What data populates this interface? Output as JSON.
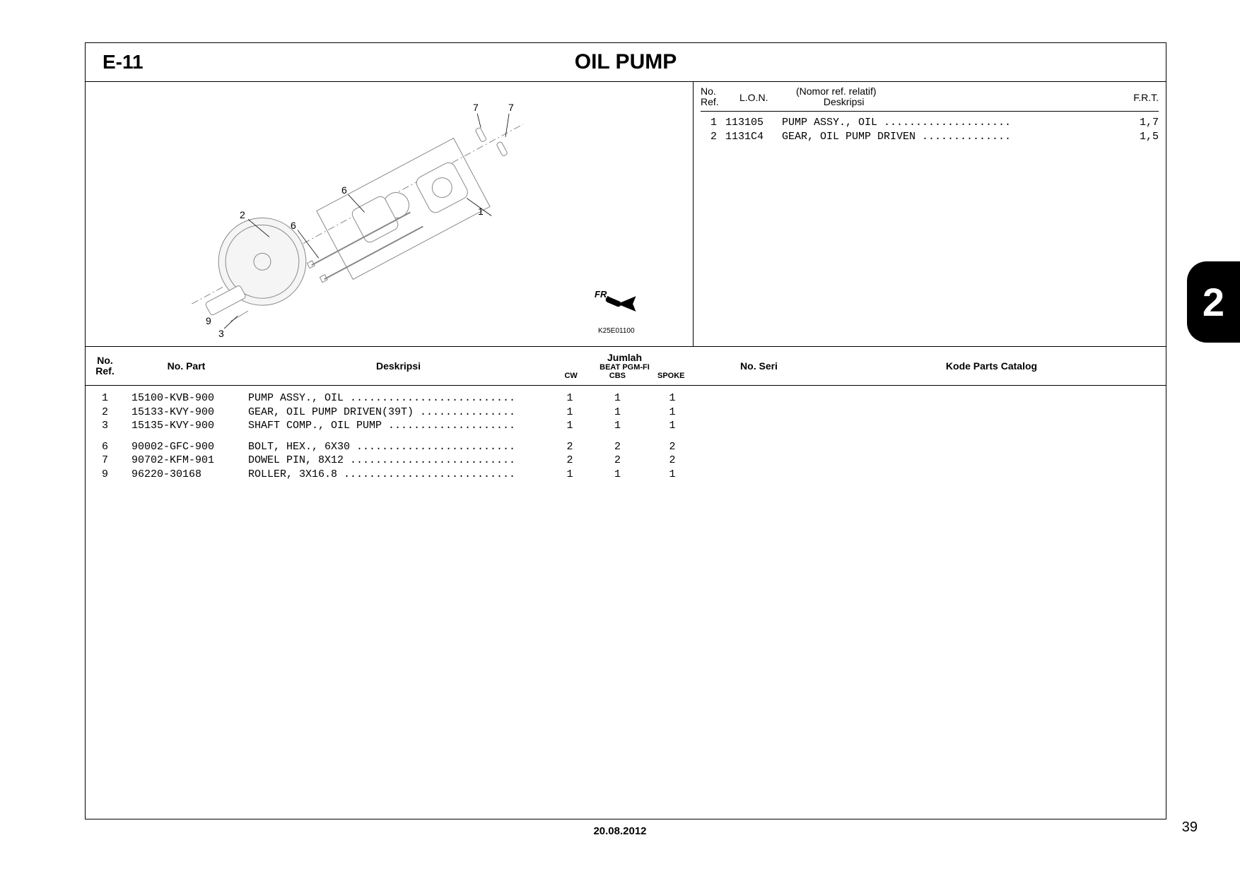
{
  "header": {
    "section_code": "E-11",
    "title": "OIL PUMP"
  },
  "ref_panel": {
    "header": {
      "no_ref": "No.\nRef.",
      "lon": "L.O.N.",
      "nomor": "(Nomor ref. relatif)",
      "deskripsi": "Deskripsi",
      "frt": "F.R.T."
    },
    "rows": [
      {
        "no": "1",
        "lon": "113105",
        "desc": "PUMP ASSY., OIL",
        "frt": "1,7"
      },
      {
        "no": "2",
        "lon": "1131C4",
        "desc": "GEAR, OIL PUMP DRIVEN",
        "frt": "1,5"
      }
    ]
  },
  "parts_header": {
    "no_ref": "No.\nRef.",
    "no_part": "No. Part",
    "deskripsi": "Deskripsi",
    "jumlah": "Jumlah",
    "jumlah_sub": "BEAT PGM-FI",
    "cw": "CW",
    "cbs": "CBS",
    "spoke": "SPOKE",
    "no_seri": "No. Seri",
    "kode": "Kode Parts Catalog"
  },
  "parts_group1": [
    {
      "no": "1",
      "part": "15100-KVB-900",
      "desc": "PUMP ASSY., OIL",
      "cw": "1",
      "cbs": "1",
      "spoke": "1"
    },
    {
      "no": "2",
      "part": "15133-KVY-900",
      "desc": "GEAR, OIL PUMP DRIVEN(39T)",
      "cw": "1",
      "cbs": "1",
      "spoke": "1"
    },
    {
      "no": "3",
      "part": "15135-KVY-900",
      "desc": "SHAFT COMP., OIL PUMP",
      "cw": "1",
      "cbs": "1",
      "spoke": "1"
    }
  ],
  "parts_group2": [
    {
      "no": "6",
      "part": "90002-GFC-900",
      "desc": "BOLT, HEX., 6X30",
      "cw": "2",
      "cbs": "2",
      "spoke": "2"
    },
    {
      "no": "7",
      "part": "90702-KFM-901",
      "desc": "DOWEL PIN, 8X12",
      "cw": "2",
      "cbs": "2",
      "spoke": "2"
    },
    {
      "no": "9",
      "part": "96220-30168",
      "desc": "ROLLER, 3X16.8",
      "cw": "1",
      "cbs": "1",
      "spoke": "1"
    }
  ],
  "diagram": {
    "fr_label": "FR.",
    "code": "K25E01100",
    "callouts": [
      "1",
      "2",
      "3",
      "6",
      "6",
      "7",
      "7",
      "9"
    ]
  },
  "side_tab": "2",
  "footer_date": "20.08.2012",
  "page_number": "39",
  "style": {
    "desc_dot_width_ref": 36,
    "desc_dot_width_parts": 42
  }
}
